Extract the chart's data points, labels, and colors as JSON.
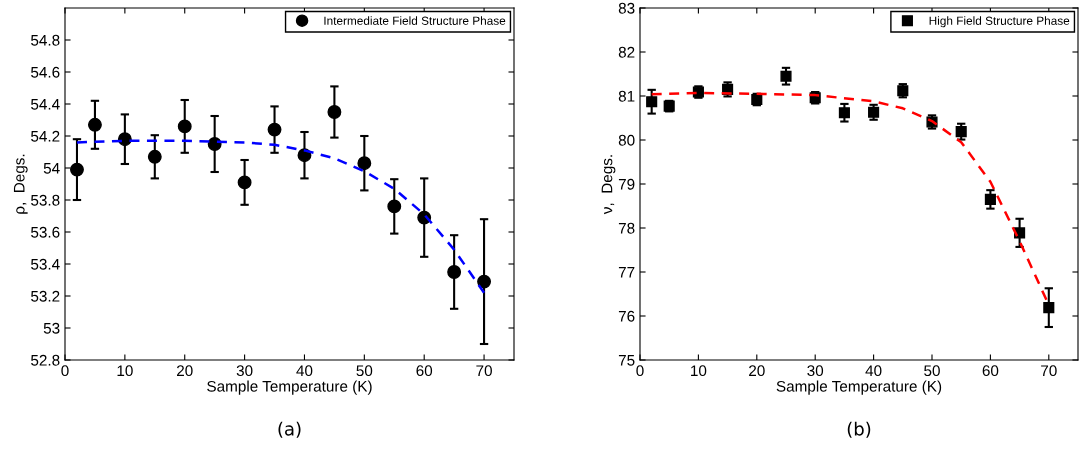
{
  "chart_data": [
    {
      "type": "scatter",
      "xlabel": "Sample Temperature (K)",
      "ylabel": "ρ,  Degs.",
      "xlim": [
        0,
        75
      ],
      "xticks": [
        0,
        10,
        20,
        30,
        40,
        50,
        60,
        70
      ],
      "ylim": [
        52.8,
        55.0
      ],
      "yticks": [
        52.8,
        53,
        53.2,
        53.4,
        53.6,
        53.8,
        54,
        54.2,
        54.4,
        54.6,
        54.8
      ],
      "grid": false,
      "legend": "top right",
      "annotations": [
        "(a)"
      ],
      "series": [
        {
          "name": "Intermediate Field Structure Phase",
          "marker": "circle",
          "color": "#000000",
          "x": [
            2,
            5,
            10,
            15,
            20,
            25,
            30,
            35,
            40,
            45,
            50,
            55,
            60,
            65,
            70
          ],
          "values": [
            53.99,
            54.27,
            54.18,
            54.07,
            54.26,
            54.15,
            53.91,
            54.24,
            54.08,
            54.35,
            54.03,
            53.76,
            53.69,
            53.35,
            53.29
          ],
          "errors": [
            0.19,
            0.15,
            0.155,
            0.135,
            0.165,
            0.175,
            0.14,
            0.145,
            0.145,
            0.16,
            0.17,
            0.17,
            0.245,
            0.23,
            0.39
          ]
        },
        {
          "type": "line",
          "line_style": "dashed",
          "color": "#0000ff",
          "x": [
            2,
            10,
            20,
            30,
            35,
            40,
            45,
            50,
            55,
            60,
            65,
            70
          ],
          "values": [
            54.16,
            54.17,
            54.17,
            54.16,
            54.145,
            54.11,
            54.06,
            53.98,
            53.87,
            53.71,
            53.49,
            53.22
          ]
        }
      ]
    },
    {
      "type": "scatter",
      "xlabel": "Sample Temperature (K)",
      "ylabel": "ν,  Degs.",
      "xlim": [
        0,
        75
      ],
      "xticks": [
        0,
        10,
        20,
        30,
        40,
        50,
        60,
        70
      ],
      "ylim": [
        75,
        83
      ],
      "yticks": [
        75,
        76,
        77,
        78,
        79,
        80,
        81,
        82,
        83
      ],
      "grid": false,
      "legend": "top right",
      "annotations": [
        "(b)"
      ],
      "series": [
        {
          "name": "High Field Structure Phase",
          "marker": "square",
          "color": "#000000",
          "x": [
            2,
            5,
            10,
            15,
            20,
            25,
            30,
            35,
            40,
            45,
            50,
            55,
            60,
            65,
            70
          ],
          "values": [
            80.87,
            80.77,
            81.09,
            81.15,
            80.92,
            81.45,
            80.96,
            80.62,
            80.63,
            81.12,
            80.41,
            80.19,
            78.65,
            77.89,
            76.19
          ],
          "errors": [
            0.27,
            0.12,
            0.13,
            0.16,
            0.13,
            0.19,
            0.13,
            0.2,
            0.17,
            0.15,
            0.15,
            0.18,
            0.21,
            0.32,
            0.44
          ]
        },
        {
          "type": "line",
          "line_style": "dashed",
          "color": "#ff0000",
          "x": [
            2,
            10,
            20,
            30,
            40,
            45,
            50,
            55,
            60,
            65,
            70
          ],
          "values": [
            81.04,
            81.07,
            81.05,
            81.02,
            80.88,
            80.72,
            80.43,
            79.95,
            79.05,
            77.7,
            76.25
          ]
        }
      ]
    }
  ]
}
